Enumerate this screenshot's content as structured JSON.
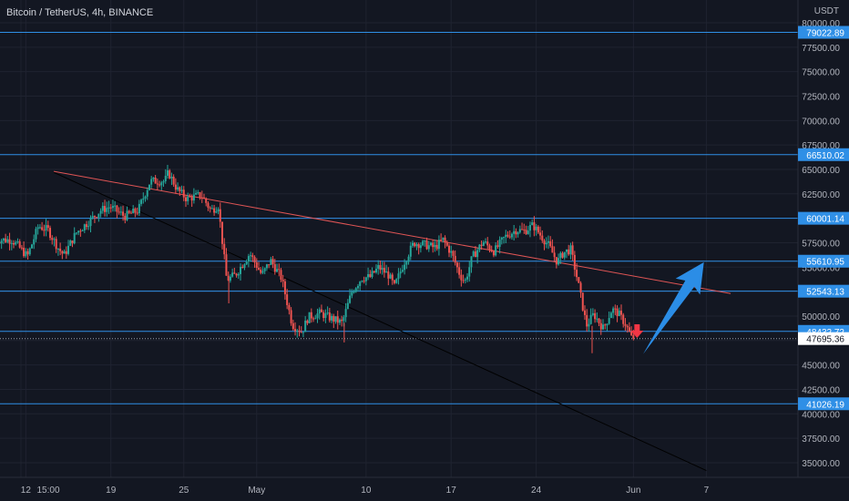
{
  "chart_data": {
    "type": "candlestick",
    "title": "Bitcoin / TetherUS, 4h, BINANCE",
    "currency": "USDT",
    "y_axis": {
      "ticks": [
        80000,
        77500,
        75000,
        72500,
        70000,
        67500,
        65000,
        62500,
        60000,
        57500,
        55000,
        52500,
        50000,
        47500,
        45000,
        42500,
        40000,
        37500,
        35000
      ],
      "ylim": [
        34000,
        81000
      ]
    },
    "x_axis": {
      "ticks": [
        {
          "label": "15:00",
          "day": 11.6
        },
        {
          "label": "12",
          "day": 12
        },
        {
          "label": "19",
          "day": 19
        },
        {
          "label": "25",
          "day": 25
        },
        {
          "label": "May",
          "day": 31
        },
        {
          "label": "10",
          "day": 40
        },
        {
          "label": "17",
          "day": 47
        },
        {
          "label": "24",
          "day": 54
        },
        {
          "label": "Jun",
          "day": 62
        },
        {
          "label": "7",
          "day": 68
        }
      ],
      "note": "day = days from Apr 1"
    },
    "price_lines": [
      {
        "price": 79022.89,
        "label": "79022.89"
      },
      {
        "price": 66510.02,
        "label": "66510.02"
      },
      {
        "price": 60001.14,
        "label": "60001.14"
      },
      {
        "price": 55610.95,
        "label": "55610.95"
      },
      {
        "price": 52543.13,
        "label": "52543.13"
      },
      {
        "price": 48432.72,
        "label": "48432.72"
      },
      {
        "price": 41026.19,
        "label": "41026.19"
      }
    ],
    "last_price": {
      "price": 47695.36,
      "label": "47695.36"
    },
    "trendlines": [
      {
        "name": "resistance",
        "color": "#e05555",
        "from": {
          "day": 14.3,
          "price": 64800
        },
        "to": {
          "day": 70,
          "price": 52300
        }
      },
      {
        "name": "support",
        "color": "#000000",
        "from": {
          "day": 14.3,
          "price": 64700
        },
        "to": {
          "day": 68,
          "price": 34200
        }
      }
    ],
    "path": [
      [
        11,
        57800
      ],
      [
        11.5,
        57200
      ],
      [
        12.3,
        56100
      ],
      [
        13.2,
        59200
      ],
      [
        14.0,
        58800
      ],
      [
        14.8,
        57000
      ],
      [
        15.3,
        56200
      ],
      [
        16.3,
        58500
      ],
      [
        17.2,
        59500
      ],
      [
        18.3,
        60800
      ],
      [
        19.1,
        61200
      ],
      [
        20.3,
        60200
      ],
      [
        21.4,
        60800
      ],
      [
        22.4,
        63800
      ],
      [
        23.6,
        63800
      ],
      [
        23.9,
        64700
      ],
      [
        24.6,
        63000
      ],
      [
        25.4,
        62000
      ],
      [
        26.6,
        62400
      ],
      [
        27.4,
        60800
      ],
      [
        28.0,
        61300
      ],
      [
        28.7,
        53700
      ],
      [
        29.4,
        54200
      ],
      [
        30.6,
        56400
      ],
      [
        31.6,
        54200
      ],
      [
        32.3,
        55700
      ],
      [
        33.2,
        53900
      ],
      [
        34.1,
        49100
      ],
      [
        34.9,
        48400
      ],
      [
        35.4,
        49900
      ],
      [
        36.4,
        50300
      ],
      [
        37.4,
        49700
      ],
      [
        38.2,
        49300
      ],
      [
        39.0,
        52500
      ],
      [
        39.8,
        53900
      ],
      [
        40.5,
        54000
      ],
      [
        41.2,
        55000
      ],
      [
        42.0,
        54200
      ],
      [
        42.5,
        53000
      ],
      [
        43.3,
        55500
      ],
      [
        44.1,
        57500
      ],
      [
        45.0,
        57300
      ],
      [
        45.8,
        57000
      ],
      [
        46.5,
        57800
      ],
      [
        47.2,
        56400
      ],
      [
        47.9,
        54200
      ],
      [
        48.3,
        53500
      ],
      [
        48.9,
        56000
      ],
      [
        49.8,
        57600
      ],
      [
        50.7,
        56600
      ],
      [
        51.6,
        58100
      ],
      [
        52.5,
        58800
      ],
      [
        53.2,
        58700
      ],
      [
        53.9,
        59300
      ],
      [
        54.5,
        58300
      ],
      [
        55.2,
        57200
      ],
      [
        55.9,
        55500
      ],
      [
        56.4,
        56500
      ],
      [
        57.0,
        56800
      ],
      [
        57.6,
        53500
      ],
      [
        58.3,
        49000
      ],
      [
        58.9,
        50200
      ],
      [
        59.7,
        48700
      ],
      [
        60.4,
        50700
      ],
      [
        60.9,
        50300
      ],
      [
        61.5,
        49200
      ],
      [
        62.0,
        47800
      ]
    ]
  }
}
